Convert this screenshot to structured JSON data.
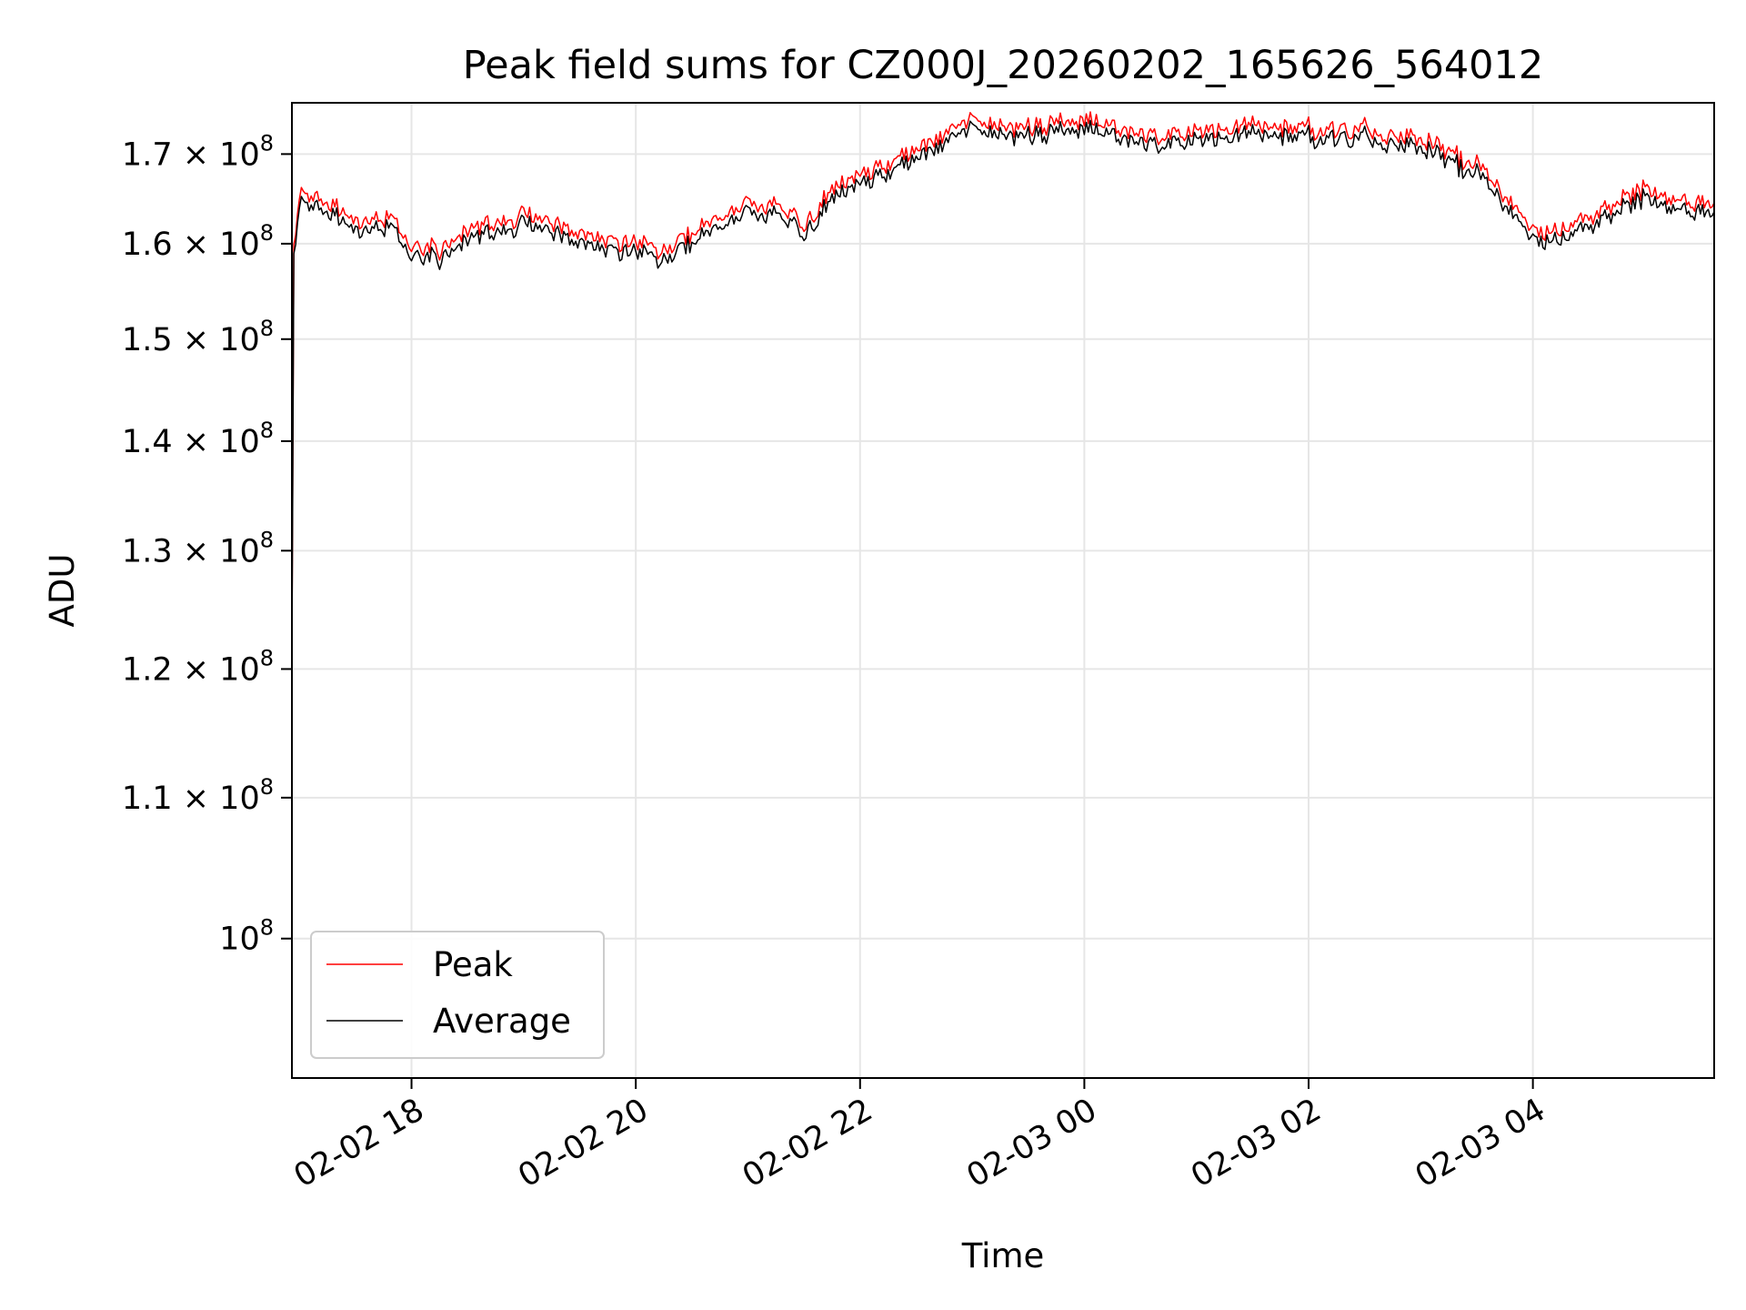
{
  "chart_data": {
    "type": "line",
    "title": "Peak field sums for CZ000J_20260202_165626_564012",
    "xlabel": "Time",
    "ylabel": "ADU",
    "yscale": "log",
    "ylim": [
      91000000.0,
      176000000.0
    ],
    "xlim": [
      "2026-02-02 16:56",
      "2026-02-03 05:37"
    ],
    "grid": true,
    "legend_position": "lower-left",
    "x_ticks": [
      {
        "value": "2026-02-02 18:00",
        "label": "02-02 18"
      },
      {
        "value": "2026-02-02 20:00",
        "label": "02-02 20"
      },
      {
        "value": "2026-02-02 22:00",
        "label": "02-02 22"
      },
      {
        "value": "2026-02-03 00:00",
        "label": "02-03 00"
      },
      {
        "value": "2026-02-03 02:00",
        "label": "02-03 02"
      },
      {
        "value": "2026-02-03 04:00",
        "label": "02-03 04"
      }
    ],
    "y_ticks": [
      {
        "value": 100000000.0,
        "mantissa": "",
        "exponent": "8"
      },
      {
        "value": 110000000.0,
        "mantissa": "1.1",
        "exponent": "8"
      },
      {
        "value": 120000000.0,
        "mantissa": "1.2",
        "exponent": "8"
      },
      {
        "value": 130000000.0,
        "mantissa": "1.3",
        "exponent": "8"
      },
      {
        "value": 140000000.0,
        "mantissa": "1.4",
        "exponent": "8"
      },
      {
        "value": 150000000.0,
        "mantissa": "1.5",
        "exponent": "8"
      },
      {
        "value": 160000000.0,
        "mantissa": "1.6",
        "exponent": "8"
      },
      {
        "value": 170000000.0,
        "mantissa": "1.7",
        "exponent": "8"
      }
    ],
    "series": [
      {
        "name": "Peak",
        "color": "#ff0000",
        "x": [
          "2026-02-02 16:56",
          "2026-02-02 16:57",
          "2026-02-02 17:00",
          "2026-02-02 17:20",
          "2026-02-02 17:30",
          "2026-02-02 17:40",
          "2026-02-02 17:50",
          "2026-02-02 18:00",
          "2026-02-02 18:15",
          "2026-02-02 18:30",
          "2026-02-02 18:45",
          "2026-02-02 19:00",
          "2026-02-02 19:15",
          "2026-02-02 19:30",
          "2026-02-02 19:45",
          "2026-02-02 20:00",
          "2026-02-02 20:15",
          "2026-02-02 20:30",
          "2026-02-02 20:45",
          "2026-02-02 21:00",
          "2026-02-02 21:15",
          "2026-02-02 21:30",
          "2026-02-02 21:45",
          "2026-02-02 22:00",
          "2026-02-02 22:15",
          "2026-02-02 22:30",
          "2026-02-02 22:45",
          "2026-02-02 23:00",
          "2026-02-02 23:15",
          "2026-02-02 23:30",
          "2026-02-02 23:45",
          "2026-02-03 00:00",
          "2026-02-03 00:15",
          "2026-02-03 00:30",
          "2026-02-03 00:45",
          "2026-02-03 01:00",
          "2026-02-03 01:15",
          "2026-02-03 01:30",
          "2026-02-03 01:45",
          "2026-02-03 02:00",
          "2026-02-03 02:15",
          "2026-02-03 02:30",
          "2026-02-03 02:45",
          "2026-02-03 03:00",
          "2026-02-03 03:15",
          "2026-02-03 03:30",
          "2026-02-03 03:45",
          "2026-02-03 04:00",
          "2026-02-03 04:15",
          "2026-02-03 04:30",
          "2026-02-03 04:45",
          "2026-02-03 05:00",
          "2026-02-03 05:15",
          "2026-02-03 05:37"
        ],
        "values": [
          122000000.0,
          159000000.0,
          165500000.0,
          164000000.0,
          162000000.0,
          163000000.0,
          162500000.0,
          160000000.0,
          159500000.0,
          161500000.0,
          162500000.0,
          163000000.0,
          162500000.0,
          161000000.0,
          160500000.0,
          160000000.0,
          159500000.0,
          161000000.0,
          163000000.0,
          164500000.0,
          164000000.0,
          162000000.0,
          166000000.0,
          167500000.0,
          169000000.0,
          170500000.0,
          172500000.0,
          174000000.0,
          173500000.0,
          173000000.0,
          173500000.0,
          174000000.0,
          173000000.0,
          172500000.0,
          172000000.0,
          172500000.0,
          173000000.0,
          173500000.0,
          173000000.0,
          173000000.0,
          172500000.0,
          173000000.0,
          172000000.0,
          172000000.0,
          170000000.0,
          169000000.0,
          165000000.0,
          161500000.0,
          161500000.0,
          163000000.0,
          164500000.0,
          166000000.0,
          165000000.0,
          164500000.0
        ]
      },
      {
        "name": "Average",
        "color": "#000000",
        "x": [
          "2026-02-02 16:56",
          "2026-02-02 16:57",
          "2026-02-02 17:00",
          "2026-02-02 17:20",
          "2026-02-02 17:30",
          "2026-02-02 17:40",
          "2026-02-02 17:50",
          "2026-02-02 18:00",
          "2026-02-02 18:15",
          "2026-02-02 18:30",
          "2026-02-02 18:45",
          "2026-02-02 19:00",
          "2026-02-02 19:15",
          "2026-02-02 19:30",
          "2026-02-02 19:45",
          "2026-02-02 20:00",
          "2026-02-02 20:15",
          "2026-02-02 20:30",
          "2026-02-02 20:45",
          "2026-02-02 21:00",
          "2026-02-02 21:15",
          "2026-02-02 21:30",
          "2026-02-02 21:45",
          "2026-02-02 22:00",
          "2026-02-02 22:15",
          "2026-02-02 22:30",
          "2026-02-02 22:45",
          "2026-02-02 23:00",
          "2026-02-02 23:15",
          "2026-02-02 23:30",
          "2026-02-02 23:45",
          "2026-02-03 00:00",
          "2026-02-03 00:15",
          "2026-02-03 00:30",
          "2026-02-03 00:45",
          "2026-02-03 01:00",
          "2026-02-03 01:15",
          "2026-02-03 01:30",
          "2026-02-03 01:45",
          "2026-02-03 02:00",
          "2026-02-03 02:15",
          "2026-02-03 02:30",
          "2026-02-03 02:45",
          "2026-02-03 03:00",
          "2026-02-03 03:15",
          "2026-02-03 03:30",
          "2026-02-03 03:45",
          "2026-02-03 04:00",
          "2026-02-03 04:15",
          "2026-02-03 04:30",
          "2026-02-03 04:45",
          "2026-02-03 05:00",
          "2026-02-03 05:15",
          "2026-02-03 05:37"
        ],
        "values": [
          121000000.0,
          158000000.0,
          164500000.0,
          163000000.0,
          161000000.0,
          162000000.0,
          161500000.0,
          159000000.0,
          158500000.0,
          160500000.0,
          161500000.0,
          162000000.0,
          161500000.0,
          160000000.0,
          159500000.0,
          159000000.0,
          158500000.0,
          160000000.0,
          162000000.0,
          163500000.0,
          163000000.0,
          161000000.0,
          165000000.0,
          166500000.0,
          168000000.0,
          169500000.0,
          171500000.0,
          173000000.0,
          172500000.0,
          172000000.0,
          172500000.0,
          173000000.0,
          172000000.0,
          171500000.0,
          171000000.0,
          171500000.0,
          172000000.0,
          172500000.0,
          172000000.0,
          172000000.0,
          171500000.0,
          172000000.0,
          171000000.0,
          171000000.0,
          169000000.0,
          168000000.0,
          164000000.0,
          160500000.0,
          160500000.0,
          162000000.0,
          163500000.0,
          165000000.0,
          164000000.0,
          163500000.0
        ]
      }
    ]
  }
}
